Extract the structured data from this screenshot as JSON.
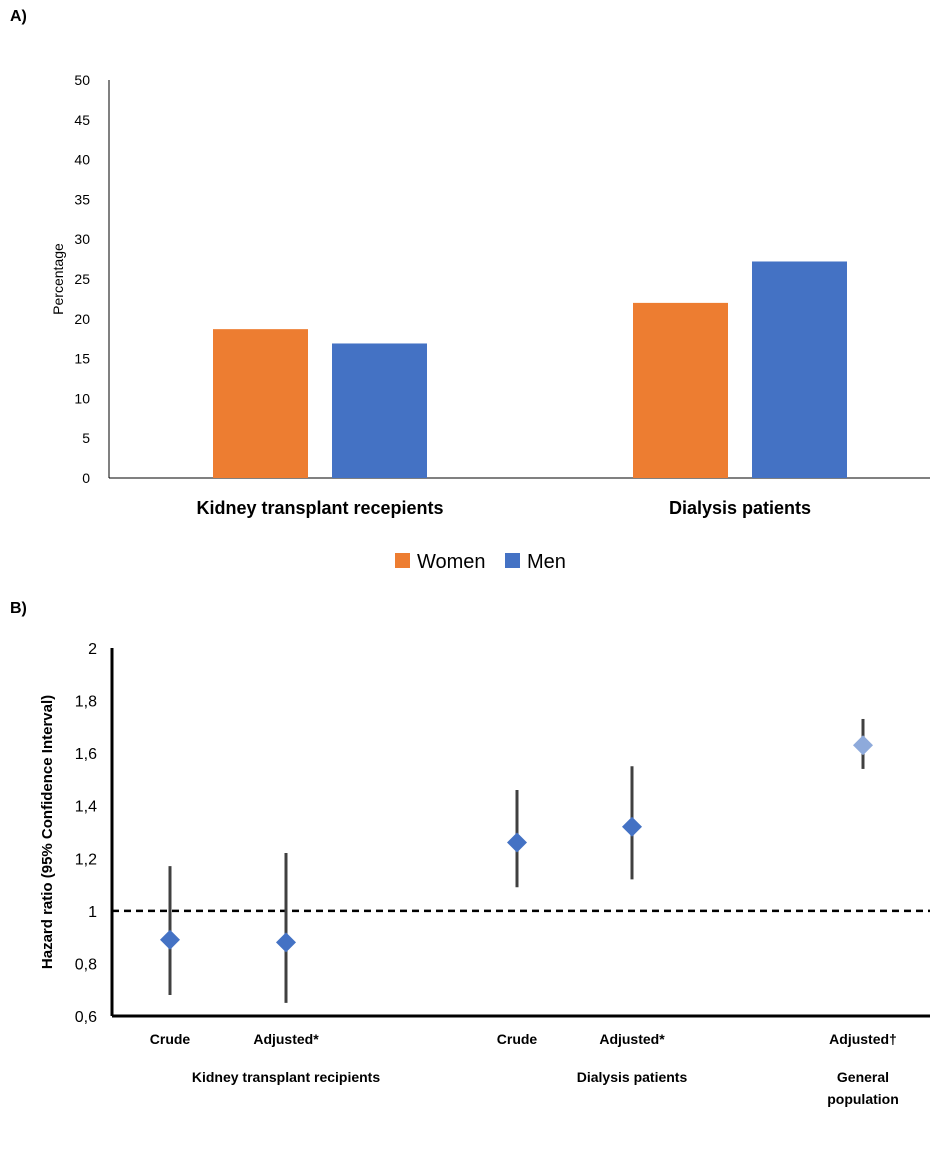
{
  "panel_a": {
    "label": "A)"
  },
  "panel_b": {
    "label": "B)"
  },
  "chart_data": [
    {
      "type": "bar",
      "title": "",
      "ylabel": "Percentage",
      "xlabel": "",
      "ylim": [
        0,
        50
      ],
      "yticks": [
        0,
        5,
        10,
        15,
        20,
        25,
        30,
        35,
        40,
        45,
        50
      ],
      "categories": [
        "Kidney transplant recepients",
        "Dialysis patients"
      ],
      "series": [
        {
          "name": "Women",
          "color": "#ED7D31",
          "values": [
            18.7,
            22.0
          ]
        },
        {
          "name": "Men",
          "color": "#4472C4",
          "values": [
            16.9,
            27.2
          ]
        }
      ],
      "legend_position": "bottom",
      "grid": false
    },
    {
      "type": "scatter",
      "title": "",
      "ylabel": "Hazard ratio (95% Confidence Interval)",
      "ylim": [
        0.6,
        2.0
      ],
      "yticks": [
        "0,6",
        "0,8",
        "1",
        "1,2",
        "1,4",
        "1,6",
        "1,8",
        "2"
      ],
      "reference_line": 1.0,
      "points": [
        {
          "label": "Crude",
          "group": "Kidney transplant recipients",
          "hr": 0.89,
          "ci_low": 0.68,
          "ci_high": 1.17,
          "color": "#4472C4"
        },
        {
          "label": "Adjusted*",
          "group": "Kidney transplant recipients",
          "hr": 0.88,
          "ci_low": 0.65,
          "ci_high": 1.22,
          "color": "#4472C4"
        },
        {
          "label": "Crude",
          "group": "Dialysis patients",
          "hr": 1.26,
          "ci_low": 1.09,
          "ci_high": 1.46,
          "color": "#4472C4"
        },
        {
          "label": "Adjusted*",
          "group": "Dialysis patients",
          "hr": 1.32,
          "ci_low": 1.12,
          "ci_high": 1.55,
          "color": "#4472C4"
        },
        {
          "label": "Adjusted†",
          "group": "General population",
          "hr": 1.63,
          "ci_low": 1.54,
          "ci_high": 1.73,
          "color": "#8EAADB"
        }
      ],
      "groups": [
        "Kidney transplant recipients",
        "Dialysis patients",
        "General population"
      ],
      "grid": false
    }
  ]
}
